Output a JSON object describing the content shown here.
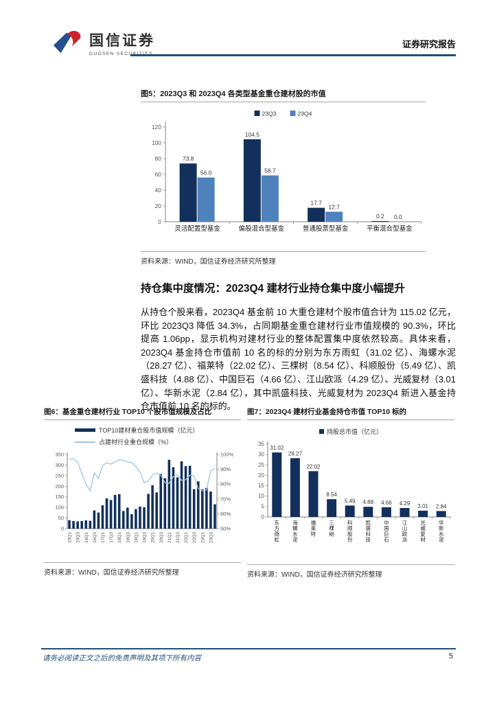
{
  "header": {
    "logo_cn": "国信证券",
    "logo_en": "GUOSEN SECURITIES",
    "report_type": "证券研究报告"
  },
  "section": {
    "heading": "持仓集中度情况：2023Q4 建材行业持仓集中度小幅提升",
    "paragraph": "从持仓个股来看，2023Q4 基金前 10 大重仓建材个股市值合计为 115.02 亿元，环比 2023Q3 降低 34.3%，占同期基金重仓建材行业市值规模的 90.3%，环比提高 1.06pp，显示机构对建材行业的整体配置集中度依然较高。具体来看，2023Q4 基金持仓市值前 10 名的标的分别为东方雨虹（31.02 亿）、海螺水泥（28.27 亿）、福莱特（22.02 亿）、三棵树（8.54 亿）、科顺股份（5.49 亿）、凯盛科技（4.88 亿）、中国巨石（4.66 亿）、江山欧派（4.29 亿）、光威复材（3.01 亿）、华新水泥（2.84 亿），其中凯盛科技、光威复材为 2023Q4 新进入基金持仓市值前 10 名的标的。"
  },
  "footer": {
    "disclaimer": "请务必阅读正文之后的免责声明及其项下所有内容",
    "page": "5"
  },
  "colors": {
    "navy": "#12305b",
    "blue": "#4f81bd",
    "line_blue": "#9dc3e6",
    "rule_blue": "#1f4e79",
    "logo_blue": "#25508f",
    "logo_red": "#d0202c"
  },
  "chart_data": [
    {
      "type": "bar",
      "title": "图5：2023Q3 和 2023Q4 各类型基金重仓建材股的市值",
      "source": "资料来源：WIND，国信证券经济研究所整理",
      "categories": [
        "灵活配置型基金",
        "偏股混合型基金",
        "普通股票型基金",
        "平衡混合型基金"
      ],
      "series": [
        {
          "name": "23Q3",
          "color": "#12305b",
          "values": [
            73.8,
            104.5,
            17.7,
            0.2
          ]
        },
        {
          "name": "23Q4",
          "color": "#4f81bd",
          "values": [
            56.0,
            58.7,
            12.7,
            0.0
          ]
        }
      ],
      "ylim": [
        0,
        120
      ],
      "ytick_step": 20,
      "legend_position": "top",
      "grid": false
    },
    {
      "type": "bar+line",
      "title": "图6：基金重仓建材行业 TOP10 个股市值规模及占比",
      "source": "资料来源：WIND，国信证券经济研究所整理",
      "categories": [
        "15Q1",
        "15Q2",
        "15Q3",
        "15Q4",
        "16Q1",
        "16Q2",
        "16Q3",
        "16Q4",
        "17Q1",
        "17Q2",
        "17Q3",
        "17Q4",
        "18Q1",
        "18Q2",
        "18Q3",
        "18Q4",
        "19Q1",
        "19Q2",
        "19Q3",
        "19Q4",
        "20Q1",
        "20Q2",
        "20Q3",
        "20Q4",
        "21Q1",
        "21Q2",
        "21Q3",
        "21Q4",
        "22Q1",
        "22Q2",
        "22Q3",
        "22Q4",
        "23Q1",
        "23Q2",
        "23Q3",
        "23Q4"
      ],
      "xlabel_every": 2,
      "bar_series": {
        "name": "TOP10建材重仓股市值规模（亿元）",
        "color": "#12305b",
        "values": [
          40,
          36,
          34,
          36,
          39,
          37,
          86,
          76,
          110,
          143,
          135,
          159,
          163,
          83,
          99,
          68,
          92,
          104,
          101,
          164,
          205,
          171,
          258,
          238,
          325,
          290,
          242,
          318,
          295,
          297,
          186,
          223,
          185,
          192,
          175,
          115
        ]
      },
      "line_series": {
        "name": "占建材行业重仓规模（%）",
        "color": "#9dc3e6",
        "values": [
          97,
          97,
          95,
          87,
          80,
          75.5,
          87.5,
          84,
          92.5,
          94.5,
          93.5,
          95,
          96.5,
          96,
          95,
          94.5,
          92,
          88,
          81,
          82,
          86,
          87.5,
          86,
          81,
          80.5,
          85,
          86.5,
          82.5,
          83,
          86,
          85.5,
          77,
          75.5,
          76,
          89.2,
          90.3
        ]
      },
      "ylim_left": [
        0,
        350
      ],
      "ytick_step_left": 50,
      "ylim_right": [
        50,
        100
      ],
      "ytick_step_right": 10,
      "grid": false
    },
    {
      "type": "bar",
      "title": "图7：2023Q4 建材行业基金持仓市值 TOP10 标的",
      "source": "资料来源：WIND，国信证券经济研究所整理",
      "legend": "持股总市值（亿元）",
      "bar_color": "#12305b",
      "categories": [
        "东方雨虹",
        "海螺水泥",
        "福莱特",
        "三棵树",
        "科顺股份",
        "凯盛科技",
        "中国巨石",
        "江山欧派",
        "光威复材",
        "华新水泥"
      ],
      "values": [
        31.02,
        28.27,
        22.02,
        8.54,
        5.49,
        4.88,
        4.66,
        4.29,
        3.01,
        2.84
      ],
      "ylim": [
        0,
        35
      ],
      "ytick_step": 5,
      "grid": false
    }
  ]
}
